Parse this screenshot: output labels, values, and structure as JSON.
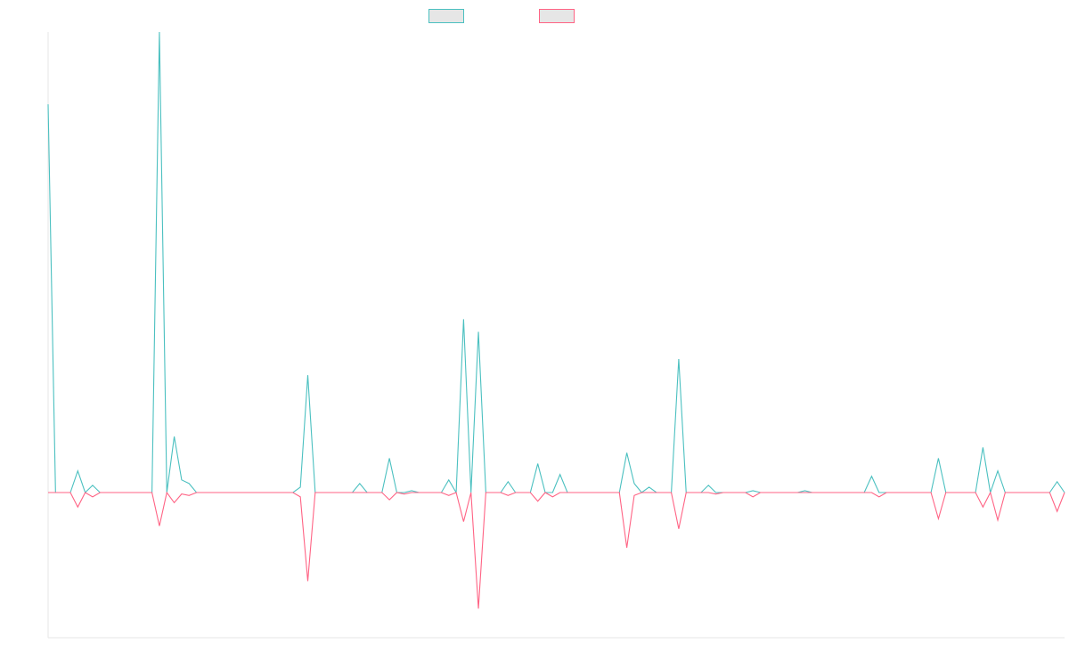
{
  "chart_data": {
    "type": "line",
    "title": "",
    "xlabel": "",
    "ylabel": "",
    "legend_placement": "top-center",
    "grid": false,
    "x_count": 138,
    "ylim": [
      -100,
      240
    ],
    "baseline": 0,
    "series": [
      {
        "color": "#4bc0c0",
        "points": [
          [
            0,
            215
          ],
          [
            1,
            0
          ],
          [
            2,
            0
          ],
          [
            3,
            0
          ],
          [
            4,
            12
          ],
          [
            5,
            0
          ],
          [
            6,
            4
          ],
          [
            7,
            0
          ],
          [
            14,
            0
          ],
          [
            15,
            255
          ],
          [
            16,
            0
          ],
          [
            17,
            31
          ],
          [
            18,
            7
          ],
          [
            19,
            5
          ],
          [
            20,
            0
          ],
          [
            33,
            0
          ],
          [
            34,
            3
          ],
          [
            35,
            65
          ],
          [
            36,
            0
          ],
          [
            41,
            0
          ],
          [
            42,
            5
          ],
          [
            43,
            0
          ],
          [
            45,
            0
          ],
          [
            46,
            19
          ],
          [
            47,
            0
          ],
          [
            48,
            0
          ],
          [
            49,
            1
          ],
          [
            50,
            0
          ],
          [
            53,
            0
          ],
          [
            54,
            7
          ],
          [
            55,
            0
          ],
          [
            56,
            96
          ],
          [
            57,
            0
          ],
          [
            58,
            89
          ],
          [
            59,
            0
          ],
          [
            61,
            0
          ],
          [
            62,
            6
          ],
          [
            63,
            0
          ],
          [
            65,
            0
          ],
          [
            66,
            16
          ],
          [
            67,
            0
          ],
          [
            68,
            0
          ],
          [
            69,
            10
          ],
          [
            70,
            0
          ],
          [
            77,
            0
          ],
          [
            78,
            22
          ],
          [
            79,
            5
          ],
          [
            80,
            0
          ],
          [
            81,
            3
          ],
          [
            82,
            0
          ],
          [
            84,
            0
          ],
          [
            85,
            74
          ],
          [
            86,
            0
          ],
          [
            88,
            0
          ],
          [
            89,
            4
          ],
          [
            90,
            0
          ],
          [
            94,
            0
          ],
          [
            95,
            1
          ],
          [
            96,
            0
          ],
          [
            101,
            0
          ],
          [
            102,
            1
          ],
          [
            103,
            0
          ],
          [
            110,
            0
          ],
          [
            111,
            9
          ],
          [
            112,
            0
          ],
          [
            119,
            0
          ],
          [
            120,
            19
          ],
          [
            121,
            0
          ],
          [
            125,
            0
          ],
          [
            126,
            25
          ],
          [
            127,
            0
          ],
          [
            128,
            12
          ],
          [
            129,
            0
          ],
          [
            135,
            0
          ],
          [
            136,
            6
          ],
          [
            137,
            0
          ]
        ]
      },
      {
        "color": "#ff6384",
        "points": [
          [
            0,
            0
          ],
          [
            3,
            0
          ],
          [
            4,
            -10
          ],
          [
            5,
            0
          ],
          [
            6,
            -3
          ],
          [
            7,
            0
          ],
          [
            14,
            0
          ],
          [
            15,
            -23
          ],
          [
            16,
            0
          ],
          [
            17,
            -7
          ],
          [
            18,
            -1
          ],
          [
            19,
            -2
          ],
          [
            20,
            0
          ],
          [
            33,
            0
          ],
          [
            34,
            -3
          ],
          [
            35,
            -61
          ],
          [
            36,
            0
          ],
          [
            45,
            0
          ],
          [
            46,
            -5
          ],
          [
            47,
            0
          ],
          [
            48,
            -1
          ],
          [
            49,
            0
          ],
          [
            53,
            0
          ],
          [
            54,
            -2
          ],
          [
            55,
            0
          ],
          [
            56,
            -20
          ],
          [
            57,
            0
          ],
          [
            58,
            -80
          ],
          [
            59,
            0
          ],
          [
            61,
            0
          ],
          [
            62,
            -2
          ],
          [
            63,
            0
          ],
          [
            65,
            0
          ],
          [
            66,
            -6
          ],
          [
            67,
            0
          ],
          [
            68,
            -3
          ],
          [
            69,
            0
          ],
          [
            77,
            0
          ],
          [
            78,
            -38
          ],
          [
            79,
            -2
          ],
          [
            80,
            0
          ],
          [
            84,
            0
          ],
          [
            85,
            -25
          ],
          [
            86,
            0
          ],
          [
            89,
            0
          ],
          [
            90,
            -1
          ],
          [
            91,
            0
          ],
          [
            94,
            0
          ],
          [
            95,
            -3
          ],
          [
            96,
            0
          ],
          [
            111,
            0
          ],
          [
            112,
            -3
          ],
          [
            113,
            0
          ],
          [
            119,
            0
          ],
          [
            120,
            -18
          ],
          [
            121,
            0
          ],
          [
            125,
            0
          ],
          [
            126,
            -10
          ],
          [
            127,
            0
          ],
          [
            128,
            -19
          ],
          [
            129,
            0
          ],
          [
            135,
            0
          ],
          [
            136,
            -13
          ],
          [
            137,
            0
          ]
        ]
      }
    ]
  }
}
